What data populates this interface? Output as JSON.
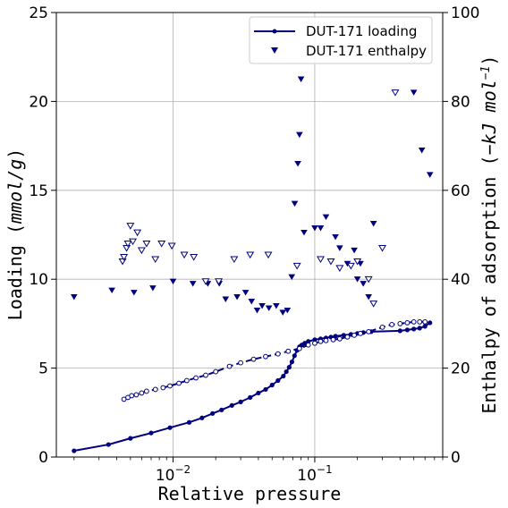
{
  "chart_data": {
    "type": "line",
    "xlabel": "Relative pressure",
    "ylabel_left": "Loading (mmol/g)",
    "ylabel_right": "Enthalpy of adsorption (-kJ mol-1)",
    "x_scale": "log",
    "xlim": [
      0.0015,
      0.8
    ],
    "x_ticks": [
      0.01,
      0.1
    ],
    "x_tick_labels": [
      {
        "base": "10",
        "exp": "−2"
      },
      {
        "base": "10",
        "exp": "−1"
      }
    ],
    "ylim_left": [
      0,
      25
    ],
    "y_ticks_left": [
      "0",
      "5",
      "10",
      "15",
      "20",
      "25"
    ],
    "ylim_right": [
      0,
      100
    ],
    "y_ticks_right": [
      "0",
      "20",
      "40",
      "60",
      "80",
      "100"
    ],
    "grid": true,
    "legend_position": "top-right",
    "colors": {
      "series": "#00007f"
    },
    "series": [
      {
        "name": "DUT-171 loading",
        "kind": "line-markers",
        "axis": "left",
        "x": [
          0.002,
          0.0035,
          0.005,
          0.007,
          0.0095,
          0.013,
          0.016,
          0.019,
          0.022,
          0.026,
          0.03,
          0.035,
          0.04,
          0.045,
          0.05,
          0.055,
          0.06,
          0.063,
          0.066,
          0.069,
          0.072,
          0.075,
          0.078,
          0.081,
          0.085,
          0.09,
          0.1,
          0.11,
          0.12,
          0.13,
          0.14,
          0.16,
          0.18,
          0.2,
          0.22,
          0.25,
          0.4,
          0.45,
          0.5,
          0.55,
          0.6,
          0.65
        ],
        "y": [
          0.35,
          0.7,
          1.05,
          1.35,
          1.65,
          1.95,
          2.2,
          2.45,
          2.65,
          2.9,
          3.1,
          3.35,
          3.6,
          3.8,
          4.05,
          4.3,
          4.55,
          4.8,
          5.05,
          5.35,
          5.7,
          6.0,
          6.2,
          6.3,
          6.4,
          6.5,
          6.6,
          6.65,
          6.7,
          6.75,
          6.8,
          6.85,
          6.9,
          6.95,
          7.0,
          7.05,
          7.1,
          7.15,
          7.2,
          7.25,
          7.35,
          7.55
        ]
      },
      {
        "name": "",
        "kind": "dashed-open-markers",
        "axis": "left",
        "x": [
          0.0045,
          0.0048,
          0.0051,
          0.0055,
          0.006,
          0.0065,
          0.0075,
          0.0085,
          0.0095,
          0.011,
          0.0125,
          0.0145,
          0.017,
          0.02,
          0.025,
          0.03,
          0.037,
          0.045,
          0.055,
          0.065,
          0.078,
          0.09,
          0.1,
          0.11,
          0.12,
          0.135,
          0.15,
          0.17,
          0.19,
          0.21,
          0.24,
          0.3,
          0.35,
          0.4,
          0.45,
          0.5,
          0.55,
          0.6
        ],
        "y": [
          3.25,
          3.35,
          3.45,
          3.5,
          3.6,
          3.7,
          3.8,
          3.9,
          4.0,
          4.15,
          4.3,
          4.45,
          4.6,
          4.8,
          5.1,
          5.3,
          5.5,
          5.65,
          5.8,
          5.95,
          6.1,
          6.3,
          6.4,
          6.5,
          6.55,
          6.6,
          6.65,
          6.75,
          6.85,
          6.95,
          7.05,
          7.3,
          7.45,
          7.5,
          7.55,
          7.6,
          7.6,
          7.6
        ]
      },
      {
        "name": "DUT-171 enthalpy",
        "kind": "filled-triangles",
        "axis": "right",
        "x": [
          0.002,
          0.0037,
          0.0053,
          0.0072,
          0.01,
          0.0138,
          0.0176,
          0.0212,
          0.0235,
          0.0283,
          0.0325,
          0.0358,
          0.0392,
          0.0425,
          0.0475,
          0.0535,
          0.0595,
          0.0641,
          0.0688,
          0.0722,
          0.076,
          0.078,
          0.08,
          0.084,
          0.1,
          0.11,
          0.12,
          0.14,
          0.15,
          0.17,
          0.19,
          0.2,
          0.21,
          0.22,
          0.24,
          0.26,
          0.5,
          0.57,
          0.65
        ],
        "y": [
          36,
          37.5,
          37,
          38,
          39.5,
          39,
          39,
          39,
          35.5,
          36,
          37,
          35,
          33,
          34,
          33.5,
          34,
          32.5,
          33,
          40.5,
          57,
          66,
          72.5,
          85,
          50.5,
          51.5,
          51.5,
          54,
          49.5,
          47,
          43.5,
          46.5,
          40,
          43.5,
          39,
          36,
          52.5,
          82,
          69,
          63.5
        ]
      },
      {
        "name": "",
        "kind": "open-triangles",
        "axis": "right",
        "x": [
          0.0044,
          0.0045,
          0.0047,
          0.0048,
          0.005,
          0.0052,
          0.0056,
          0.006,
          0.0065,
          0.0075,
          0.0083,
          0.0098,
          0.012,
          0.014,
          0.017,
          0.021,
          0.027,
          0.035,
          0.047,
          0.075,
          0.11,
          0.13,
          0.15,
          0.18,
          0.2,
          0.24,
          0.26,
          0.3,
          0.37
        ],
        "y": [
          44,
          45,
          47,
          48,
          52,
          48.5,
          50.5,
          46.5,
          48,
          44.5,
          48,
          47.5,
          45.5,
          45,
          39.5,
          39.5,
          44.5,
          45.5,
          45.5,
          43,
          44.5,
          44,
          42.5,
          43,
          44,
          40,
          34.5,
          47,
          82
        ]
      }
    ]
  }
}
